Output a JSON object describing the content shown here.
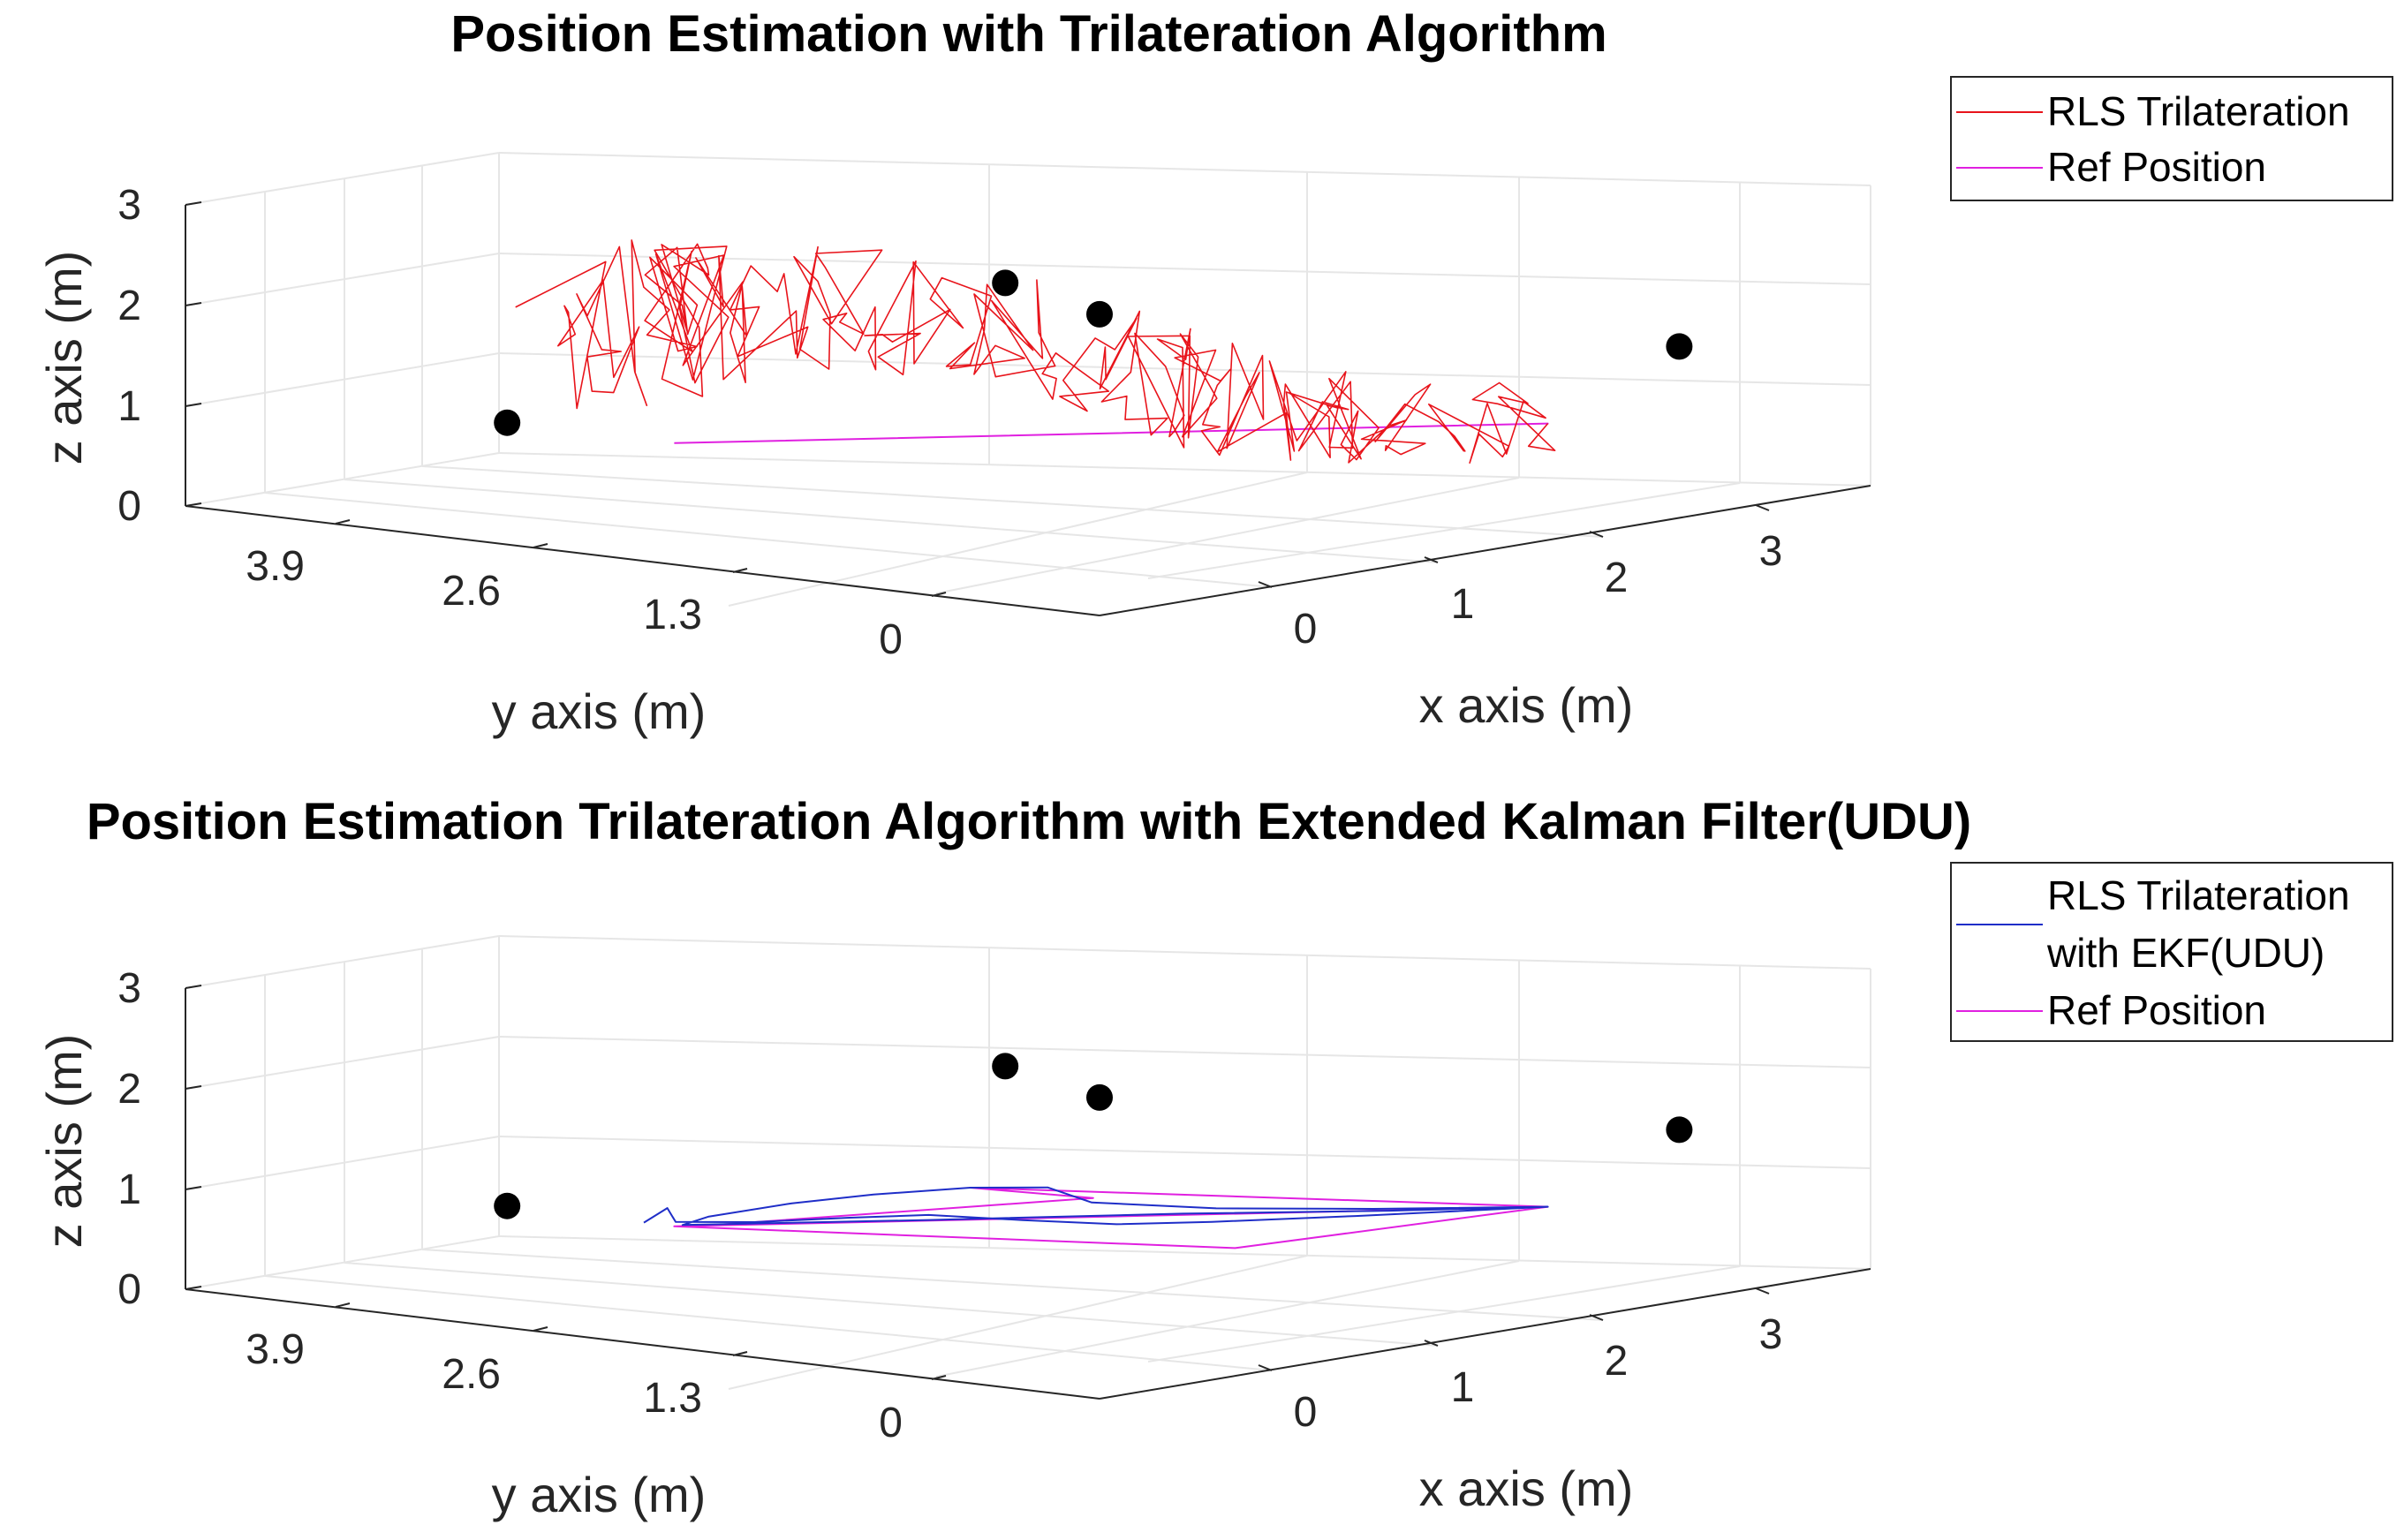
{
  "colors": {
    "rls": "#e8141b",
    "ekf": "#1f2ec8",
    "ref": "#e020e0",
    "anchor": "#000000",
    "grid": "#e6e6e6",
    "axis": "#262626"
  },
  "chart_data": [
    {
      "type": "line3d",
      "title": "Position Estimation with Trilateration Algorithm",
      "xlabel": "x axis (m)",
      "ylabel": "y axis (m)",
      "zlabel": "z axis (m)",
      "xlim": [
        -0.8,
        3.6
      ],
      "ylim": [
        -0.8,
        4.6
      ],
      "zlim": [
        0,
        3
      ],
      "x_ticks": [
        "0",
        "1",
        "2",
        "3"
      ],
      "y_ticks": [
        "3.9",
        "2.6",
        "1.3",
        "0"
      ],
      "y_tick_values": [
        3.9,
        2.6,
        1.3,
        0
      ],
      "z_ticks": [
        "0",
        "1",
        "2",
        "3"
      ],
      "legend": [
        "RLS Trilateration",
        "Ref Position"
      ],
      "anchors": [
        [
          0,
          0,
          3
        ],
        [
          3,
          3.9,
          1.8
        ],
        [
          3.4,
          -0.1,
          1.8
        ],
        [
          0,
          3.9,
          1.2
        ]
      ],
      "ref_path": [
        [
          0,
          2.8,
          1.2
        ],
        [
          2.7,
          0,
          1.2
        ],
        [
          0,
          2.8,
          1.2
        ]
      ],
      "rls_seed": 7,
      "rls_jitter_z": 0.9,
      "rls_jitter_xy": 0.35,
      "rls_waypoints": [
        [
          0.0,
          3.6,
          2.2
        ],
        [
          0.3,
          3.2,
          2.4
        ],
        [
          0.2,
          2.8,
          2.5
        ],
        [
          0.5,
          2.4,
          2.6
        ],
        [
          0.9,
          2.0,
          2.3
        ],
        [
          1.3,
          1.5,
          1.9
        ],
        [
          1.6,
          1.2,
          1.6
        ],
        [
          1.9,
          0.8,
          1.4
        ],
        [
          2.3,
          0.5,
          1.3
        ],
        [
          2.7,
          0.0,
          1.2
        ]
      ],
      "rls_points_per_segment": 26
    },
    {
      "type": "line3d",
      "title": "Position Estimation Trilateration Algorithm with Extended Kalman Filter(UDU)",
      "xlabel": "x axis (m)",
      "ylabel": "y axis (m)",
      "zlabel": "z axis (m)",
      "xlim": [
        -0.8,
        3.6
      ],
      "ylim": [
        -0.8,
        4.6
      ],
      "zlim": [
        0,
        3
      ],
      "x_ticks": [
        "0",
        "1",
        "2",
        "3"
      ],
      "y_ticks": [
        "3.9",
        "2.6",
        "1.3",
        "0"
      ],
      "y_tick_values": [
        3.9,
        2.6,
        1.3,
        0
      ],
      "z_ticks": [
        "0",
        "1",
        "2",
        "3"
      ],
      "legend": [
        "RLS Trilateration with EKF(UDU)",
        "Ref Position"
      ],
      "legend_lines": [
        "RLS Trilateration",
        "with EKF(UDU)"
      ],
      "anchors": [
        [
          0,
          0,
          3
        ],
        [
          3,
          3.9,
          1.8
        ],
        [
          3.4,
          -0.1,
          1.8
        ],
        [
          0,
          3.9,
          1.2
        ]
      ],
      "ref_path": [
        [
          0,
          2.8,
          1.2
        ],
        [
          2.7,
          0,
          1.2
        ],
        [
          1.0,
          0.2,
          1.2
        ],
        [
          0,
          2.8,
          1.2
        ],
        [
          2.7,
          0,
          1.2
        ],
        [
          1.6,
          2.6,
          1.2
        ],
        [
          1.7,
          1.9,
          1.2
        ],
        [
          0.1,
          2.7,
          1.2
        ]
      ],
      "ekf_path": [
        [
          0.0,
          3.0,
          1.2
        ],
        [
          0.05,
          2.9,
          1.35
        ],
        [
          0.1,
          2.9,
          1.2
        ],
        [
          0.3,
          2.6,
          1.2
        ],
        [
          0.6,
          2.3,
          1.22
        ],
        [
          0.8,
          2.0,
          1.25
        ],
        [
          1.0,
          1.6,
          1.22
        ],
        [
          1.2,
          1.2,
          1.2
        ],
        [
          1.5,
          0.9,
          1.2
        ],
        [
          2.0,
          0.5,
          1.2
        ],
        [
          2.7,
          0.0,
          1.2
        ],
        [
          2.2,
          0.6,
          1.2
        ],
        [
          1.8,
          1.2,
          1.2
        ],
        [
          1.6,
          1.8,
          1.2
        ],
        [
          1.7,
          2.2,
          1.25
        ],
        [
          1.6,
          2.6,
          1.2
        ],
        [
          1.2,
          2.8,
          1.2
        ],
        [
          0.8,
          2.9,
          1.2
        ],
        [
          0.3,
          2.9,
          1.2
        ],
        [
          0.05,
          2.8,
          1.2
        ],
        [
          0.8,
          2.0,
          1.2
        ],
        [
          1.6,
          1.2,
          1.2
        ],
        [
          2.2,
          0.5,
          1.2
        ],
        [
          2.6,
          0.1,
          1.2
        ]
      ]
    }
  ]
}
